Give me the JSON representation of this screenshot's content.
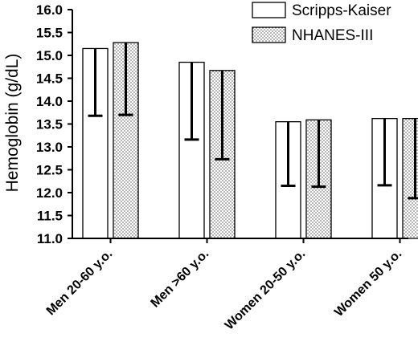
{
  "chart_data": {
    "type": "bar",
    "title": "",
    "xlabel": "",
    "ylabel": "Hemoglobin (g/dL)",
    "ylim": [
      11.0,
      16.0
    ],
    "yticks": [
      "11.0",
      "11.5",
      "12.0",
      "12.5",
      "13.0",
      "13.5",
      "14.0",
      "14.5",
      "15.0",
      "15.5",
      "16.0"
    ],
    "categories": [
      "Men 20-60 y.o.",
      "Men >60 y.o.",
      "Women 20-50 y.o.",
      "Women 50 y.o."
    ],
    "series": [
      {
        "name": "Scripps-Kaiser",
        "pattern": "white",
        "values": [
          15.15,
          14.85,
          13.55,
          13.62
        ],
        "error_low": [
          13.68,
          13.16,
          12.15,
          12.16
        ]
      },
      {
        "name": "NHANES-III",
        "pattern": "dotted",
        "values": [
          15.28,
          14.67,
          13.59,
          13.62
        ],
        "error_low": [
          13.7,
          12.73,
          12.13,
          11.88
        ]
      }
    ],
    "legend_position": "top-right",
    "grid": false
  }
}
